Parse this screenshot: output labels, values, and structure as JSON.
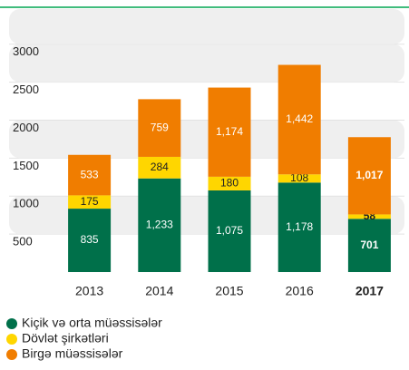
{
  "chart_data": {
    "type": "stacked_bar",
    "categories": [
      "2013",
      "2014",
      "2015",
      "2016",
      "2017"
    ],
    "emphasized": [
      false,
      false,
      false,
      false,
      true
    ],
    "series": [
      {
        "name": "Kiçik və orta müəssisələr",
        "color": "#00704a",
        "label_color": "#ffffff",
        "values": [
          835,
          1233,
          1075,
          1178,
          701
        ],
        "value_labels": [
          "835",
          "1,233",
          "1,075",
          "1,178",
          "701"
        ]
      },
      {
        "name": "Dövlət şirkətləri",
        "color": "#ffd600",
        "label_color": "#222222",
        "values": [
          175,
          284,
          180,
          108,
          58
        ],
        "value_labels": [
          "175",
          "284",
          "180",
          "108",
          "58"
        ]
      },
      {
        "name": "Birgə müəssisələr",
        "color": "#f07d00",
        "label_color": "#ffffff",
        "values": [
          533,
          759,
          1174,
          1442,
          1017
        ],
        "value_labels": [
          "533",
          "759",
          "1,174",
          "1,442",
          "1,017"
        ]
      }
    ],
    "ylim": [
      0,
      3200
    ],
    "yticks": [
      500,
      1000,
      1500,
      2000,
      2500,
      3000
    ],
    "legend": "bottom-left"
  }
}
